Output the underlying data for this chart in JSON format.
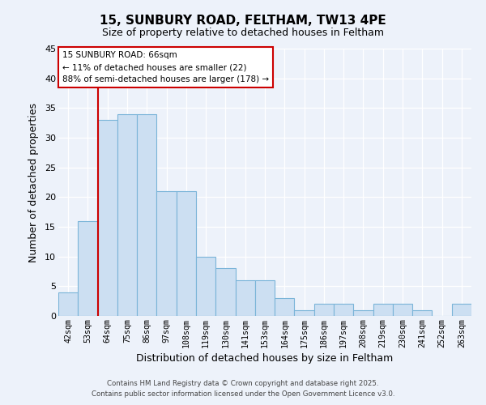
{
  "title": "15, SUNBURY ROAD, FELTHAM, TW13 4PE",
  "subtitle": "Size of property relative to detached houses in Feltham",
  "xlabel": "Distribution of detached houses by size in Feltham",
  "ylabel": "Number of detached properties",
  "categories": [
    "42sqm",
    "53sqm",
    "64sqm",
    "75sqm",
    "86sqm",
    "97sqm",
    "108sqm",
    "119sqm",
    "130sqm",
    "141sqm",
    "153sqm",
    "164sqm",
    "175sqm",
    "186sqm",
    "197sqm",
    "208sqm",
    "219sqm",
    "230sqm",
    "241sqm",
    "252sqm",
    "263sqm"
  ],
  "values": [
    4,
    16,
    33,
    34,
    34,
    21,
    21,
    10,
    8,
    6,
    6,
    3,
    1,
    2,
    2,
    1,
    2,
    2,
    1,
    0,
    2
  ],
  "bar_color": "#ccdff2",
  "bar_edge_color": "#7ab4d8",
  "ylim": [
    0,
    45
  ],
  "yticks": [
    0,
    5,
    10,
    15,
    20,
    25,
    30,
    35,
    40,
    45
  ],
  "marker_line_color": "#cc0000",
  "annotation_title": "15 SUNBURY ROAD: 66sqm",
  "annotation_line1": "← 11% of detached houses are smaller (22)",
  "annotation_line2": "88% of semi-detached houses are larger (178) →",
  "annotation_box_color": "#ffffff",
  "annotation_box_edge_color": "#cc0000",
  "background_color": "#edf2fa",
  "grid_color": "#ffffff",
  "footer1": "Contains HM Land Registry data © Crown copyright and database right 2025.",
  "footer2": "Contains public sector information licensed under the Open Government Licence v3.0."
}
